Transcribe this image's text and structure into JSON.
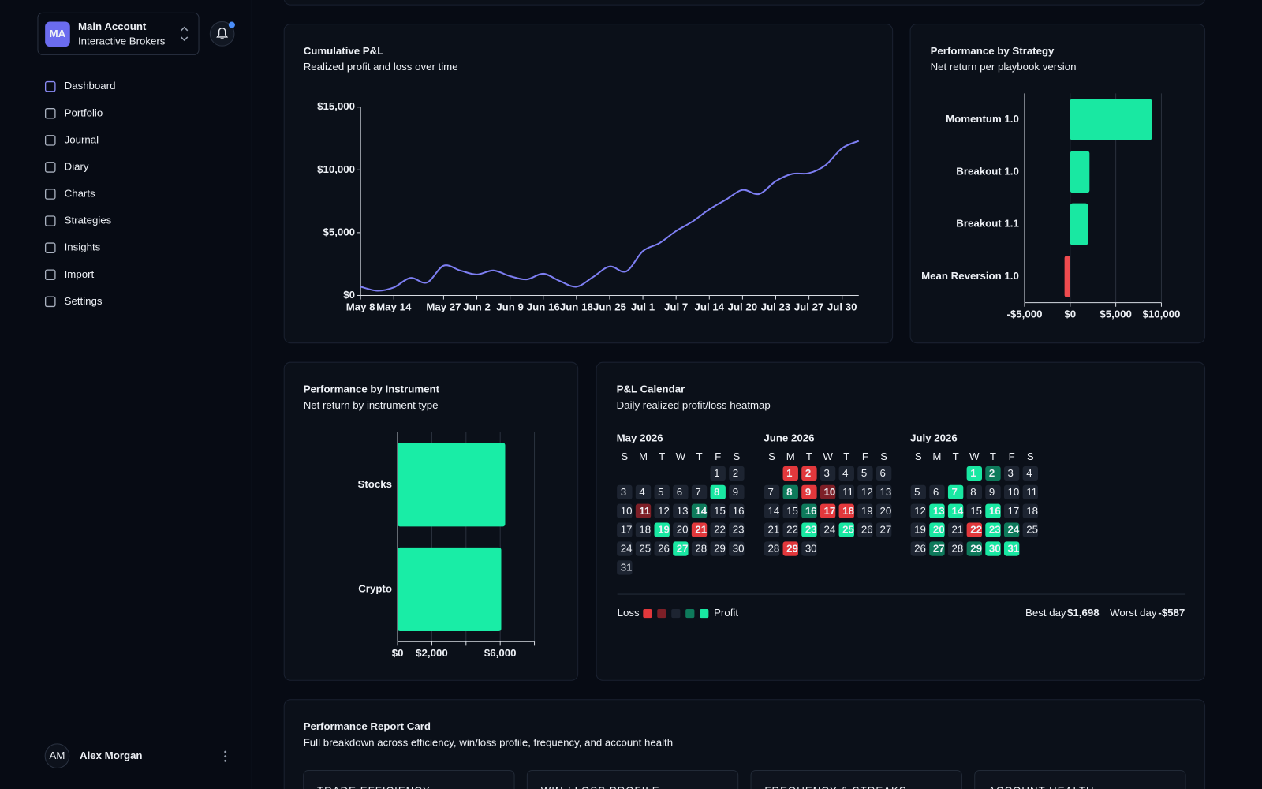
{
  "sidebar": {
    "account": {
      "initials": "MA",
      "name": "Main Account",
      "broker": "Interactive Brokers"
    },
    "nav": [
      "Dashboard",
      "Portfolio",
      "Journal",
      "Diary",
      "Charts",
      "Strategies",
      "Insights",
      "Import",
      "Settings"
    ],
    "active_index": 0,
    "user": {
      "initials": "AM",
      "name": "Alex Morgan"
    }
  },
  "chart_data": [
    {
      "type": "line",
      "title": "Cumulative P&L",
      "subtitle": "Realized profit and loss over time",
      "color": "#7d7ef2",
      "categories": [
        "May 8",
        null,
        "May 14",
        null,
        null,
        "May 27",
        null,
        "Jun 2",
        null,
        "Jun 9",
        null,
        "Jun 16",
        null,
        "Jun 18",
        null,
        "Jun 25",
        null,
        "Jul 1",
        null,
        "Jul 7",
        null,
        "Jul 14",
        null,
        "Jul 20",
        null,
        "Jul 23",
        null,
        "Jul 27",
        null,
        "Jul 30",
        null
      ],
      "values": [
        700,
        380,
        640,
        1400,
        1030,
        2370,
        1990,
        1670,
        1990,
        1540,
        1280,
        1730,
        1150,
        700,
        1470,
        2310,
        1920,
        3530,
        4170,
        5130,
        5900,
        6860,
        7630,
        8400,
        8080,
        9100,
        9680,
        9740,
        10380,
        11730,
        12310
      ],
      "ylim": [
        0,
        15000
      ],
      "yticks": [
        {
          "value": 0,
          "label": "$0"
        },
        {
          "value": 5000,
          "label": "$5,000"
        },
        {
          "value": 10000,
          "label": "$10,000"
        },
        {
          "value": 15000,
          "label": "$15,000"
        }
      ]
    },
    {
      "type": "hbar",
      "title": "Performance by Strategy",
      "subtitle": "Net return per playbook version",
      "categories": [
        "Momentum 1.0",
        "Breakout 1.0",
        "Breakout 1.1",
        "Mean Reversion 1.0"
      ],
      "values": [
        8940,
        2120,
        1950,
        -620
      ],
      "colors": [
        "#19e8a2",
        "#19e8a2",
        "#19e8a2",
        "#ef4b4f"
      ],
      "xlim": [
        -5000,
        10000
      ],
      "xticks": [
        {
          "value": -5000,
          "label": "-$5,000"
        },
        {
          "value": 0,
          "label": "$0"
        },
        {
          "value": 5000,
          "label": "$5,000"
        },
        {
          "value": 10000,
          "label": "$10,000"
        }
      ]
    },
    {
      "type": "hbar",
      "title": "Performance by Instrument",
      "subtitle": "Net return by instrument type",
      "categories": [
        "Stocks",
        "Crypto"
      ],
      "values": [
        6290,
        6060
      ],
      "color": "#19eda6",
      "xlim": [
        0,
        8000
      ],
      "xticks": [
        {
          "value": 0,
          "label": "$0"
        },
        {
          "value": 2000,
          "label": "$2,000"
        },
        {
          "value": 4000,
          "label": null
        },
        {
          "value": 6000,
          "label": "$6,000"
        },
        {
          "value": 8000,
          "label": null
        }
      ]
    },
    {
      "type": "calendar",
      "title": "P&L Calendar",
      "subtitle": "Daily realized profit/loss heatmap",
      "weekdays": [
        "S",
        "M",
        "T",
        "W",
        "T",
        "F",
        "S"
      ],
      "levels": [
        {
          "level": -2,
          "color": "#e2383c"
        },
        {
          "level": -1,
          "color": "#7d1f27"
        },
        {
          "level": 0,
          "color": "#1d2431"
        },
        {
          "level": 1,
          "color": "#0e7a5b"
        },
        {
          "level": 2,
          "color": "#19e8a2"
        }
      ],
      "months": [
        {
          "name": "May 2026",
          "start_weekday": 5,
          "days": [
            1,
            2,
            3,
            4,
            5,
            6,
            7,
            8,
            9,
            10,
            11,
            12,
            13,
            14,
            15,
            16,
            17,
            18,
            19,
            20,
            21,
            22,
            23,
            24,
            25,
            26,
            27,
            28,
            29,
            30,
            31
          ],
          "levels": [
            0,
            0,
            0,
            0,
            0,
            0,
            0,
            2,
            0,
            0,
            -1,
            0,
            0,
            1,
            0,
            0,
            0,
            0,
            2,
            0,
            -2,
            0,
            0,
            0,
            0,
            0,
            2,
            0,
            0,
            0,
            0
          ]
        },
        {
          "name": "June 2026",
          "start_weekday": 1,
          "days": [
            1,
            2,
            3,
            4,
            5,
            6,
            7,
            8,
            9,
            10,
            11,
            12,
            13,
            14,
            15,
            16,
            17,
            18,
            19,
            20,
            21,
            22,
            23,
            24,
            25,
            26,
            27,
            28,
            29,
            30
          ],
          "levels": [
            -2,
            -2,
            0,
            0,
            0,
            0,
            0,
            1,
            -2,
            -1,
            0,
            0,
            0,
            0,
            0,
            1,
            -2,
            -2,
            0,
            0,
            0,
            0,
            2,
            0,
            2,
            0,
            0,
            0,
            -2,
            0
          ]
        },
        {
          "name": "July 2026",
          "start_weekday": 3,
          "days": [
            1,
            2,
            3,
            4,
            5,
            6,
            7,
            8,
            9,
            10,
            11,
            12,
            13,
            14,
            15,
            16,
            17,
            18,
            19,
            20,
            21,
            22,
            23,
            24,
            25,
            26,
            27,
            28,
            29,
            30,
            31
          ],
          "levels": [
            2,
            1,
            0,
            0,
            0,
            0,
            2,
            0,
            0,
            0,
            0,
            0,
            2,
            2,
            0,
            2,
            0,
            0,
            0,
            2,
            0,
            -2,
            2,
            1,
            0,
            0,
            1,
            0,
            1,
            2,
            2
          ]
        }
      ],
      "legend": {
        "loss": "Loss",
        "profit": "Profit",
        "best_label": "Best day",
        "best_value": "$1,698",
        "worst_label": "Worst day",
        "worst_value": "-$587"
      }
    }
  ],
  "report_card": {
    "title": "Performance Report Card",
    "subtitle": "Full breakdown across efficiency, win/loss profile, frequency, and account health",
    "sections": [
      "TRADE EFFICIENCY",
      "WIN / LOSS PROFILE",
      "FREQUENCY & STREAKS",
      "ACCOUNT HEALTH"
    ]
  }
}
